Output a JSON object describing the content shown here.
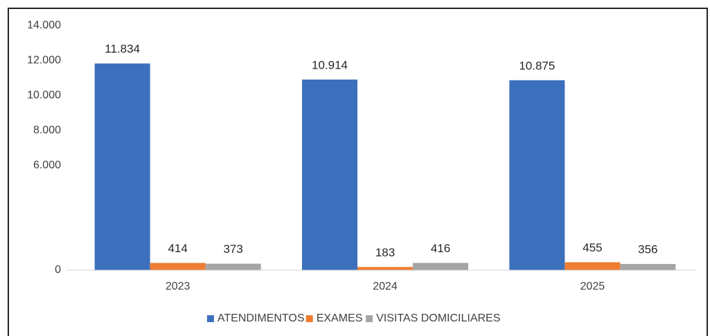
{
  "chart_data": {
    "type": "bar",
    "categories": [
      "2023",
      "2024",
      "2025"
    ],
    "series": [
      {
        "name": "ATENDIMENTOS",
        "color": "#3c70bc",
        "values": [
          11834,
          10914,
          10875
        ],
        "value_labels": [
          "11.834",
          "10.914",
          "10.875"
        ]
      },
      {
        "name": "EXAMES",
        "color": "#ef7d31",
        "values": [
          414,
          183,
          455
        ]
      },
      {
        "name": "VISITAS DOMICILIARES",
        "color": "#a5a5a5",
        "values": [
          373,
          416,
          356
        ]
      }
    ],
    "ylim": [
      0,
      14000
    ],
    "yticks": [
      0,
      {
        "value": 6000,
        "label": "6.000"
      },
      {
        "value": 8000,
        "label": "8.000"
      },
      {
        "value": 10000,
        "label": "10.000"
      },
      {
        "value": 12000,
        "label": "12.000"
      },
      {
        "value": 14000,
        "label": "14.000"
      }
    ],
    "legend": "bottom"
  }
}
